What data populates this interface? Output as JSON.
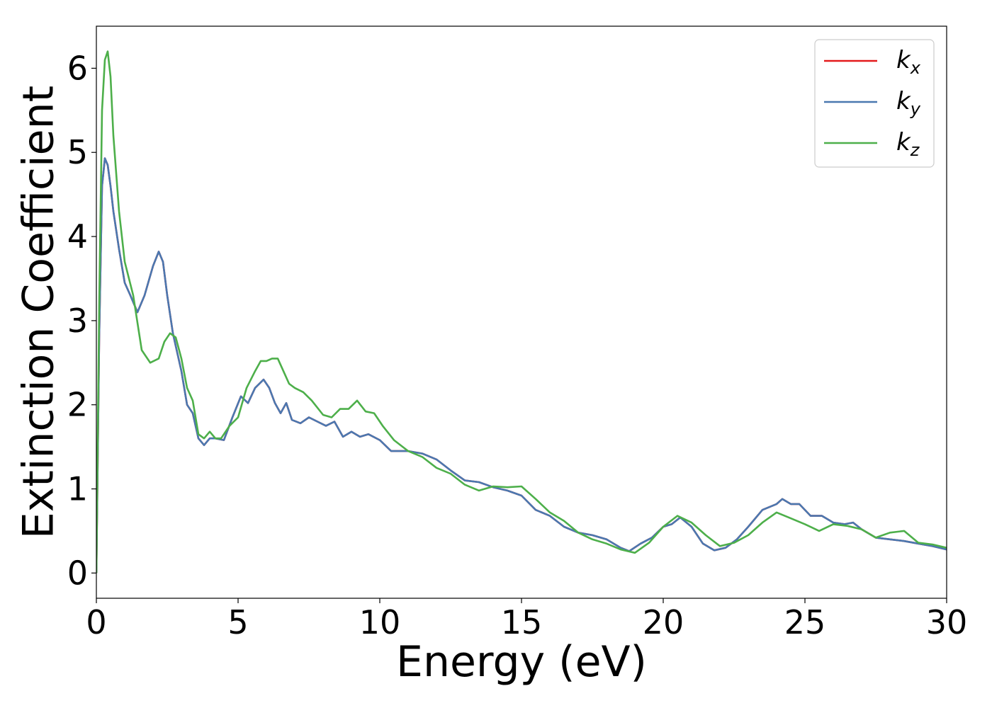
{
  "chart_data": {
    "type": "line",
    "title": "",
    "xlabel": "Energy (eV)",
    "ylabel": "Extinction Coefficient",
    "xlim": [
      0,
      30
    ],
    "ylim": [
      -0.3,
      6.5
    ],
    "xticks": [
      0,
      5,
      10,
      15,
      20,
      25,
      30
    ],
    "yticks": [
      0,
      1,
      2,
      3,
      4,
      5,
      6
    ],
    "grid": false,
    "legend_position": "top-right",
    "series": [
      {
        "name": "k",
        "subscript": "x",
        "color": "#e41a1c",
        "x": [
          0,
          0.1,
          0.2,
          0.3,
          0.4,
          0.5,
          0.6,
          0.8,
          1.0,
          1.2,
          1.45,
          1.7,
          2.0,
          2.2,
          2.35,
          2.5,
          2.7,
          3.0,
          3.2,
          3.4,
          3.6,
          3.8,
          4.0,
          4.2,
          4.5,
          4.8,
          5.1,
          5.35,
          5.6,
          5.9,
          6.1,
          6.3,
          6.5,
          6.7,
          6.9,
          7.2,
          7.5,
          7.8,
          8.1,
          8.4,
          8.7,
          9.0,
          9.3,
          9.6,
          10.0,
          10.4,
          11.0,
          11.5,
          12.0,
          12.5,
          13.0,
          13.5,
          14.0,
          14.5,
          15.0,
          15.5,
          16.0,
          16.5,
          17.0,
          17.5,
          18.0,
          18.5,
          18.8,
          19.2,
          19.6,
          20.0,
          20.3,
          20.6,
          21.0,
          21.4,
          21.8,
          22.2,
          22.6,
          23.0,
          23.5,
          24.0,
          24.2,
          24.5,
          24.8,
          25.2,
          25.6,
          26.0,
          26.4,
          26.7,
          27.0,
          27.5,
          28.0,
          28.5,
          29.0,
          29.5,
          30.0
        ],
        "values": [
          0.0,
          2.8,
          4.6,
          4.93,
          4.85,
          4.6,
          4.3,
          3.85,
          3.45,
          3.3,
          3.1,
          3.3,
          3.65,
          3.82,
          3.7,
          3.3,
          2.85,
          2.4,
          2.0,
          1.9,
          1.6,
          1.52,
          1.6,
          1.6,
          1.58,
          1.85,
          2.1,
          2.02,
          2.2,
          2.3,
          2.2,
          2.02,
          1.9,
          2.02,
          1.82,
          1.78,
          1.85,
          1.8,
          1.75,
          1.8,
          1.62,
          1.68,
          1.62,
          1.65,
          1.58,
          1.45,
          1.45,
          1.42,
          1.35,
          1.22,
          1.1,
          1.08,
          1.02,
          0.98,
          0.92,
          0.75,
          0.68,
          0.55,
          0.48,
          0.45,
          0.4,
          0.3,
          0.26,
          0.35,
          0.42,
          0.55,
          0.58,
          0.66,
          0.55,
          0.35,
          0.27,
          0.3,
          0.4,
          0.55,
          0.75,
          0.82,
          0.88,
          0.82,
          0.82,
          0.68,
          0.68,
          0.6,
          0.58,
          0.6,
          0.52,
          0.42,
          0.4,
          0.38,
          0.35,
          0.32,
          0.28
        ]
      },
      {
        "name": "k",
        "subscript": "y",
        "color": "#4a78b0",
        "x": [
          0,
          0.1,
          0.2,
          0.3,
          0.4,
          0.5,
          0.6,
          0.8,
          1.0,
          1.2,
          1.45,
          1.7,
          2.0,
          2.2,
          2.35,
          2.5,
          2.7,
          3.0,
          3.2,
          3.4,
          3.6,
          3.8,
          4.0,
          4.2,
          4.5,
          4.8,
          5.1,
          5.35,
          5.6,
          5.9,
          6.1,
          6.3,
          6.5,
          6.7,
          6.9,
          7.2,
          7.5,
          7.8,
          8.1,
          8.4,
          8.7,
          9.0,
          9.3,
          9.6,
          10.0,
          10.4,
          11.0,
          11.5,
          12.0,
          12.5,
          13.0,
          13.5,
          14.0,
          14.5,
          15.0,
          15.5,
          16.0,
          16.5,
          17.0,
          17.5,
          18.0,
          18.5,
          18.8,
          19.2,
          19.6,
          20.0,
          20.3,
          20.6,
          21.0,
          21.4,
          21.8,
          22.2,
          22.6,
          23.0,
          23.5,
          24.0,
          24.2,
          24.5,
          24.8,
          25.2,
          25.6,
          26.0,
          26.4,
          26.7,
          27.0,
          27.5,
          28.0,
          28.5,
          29.0,
          29.5,
          30.0
        ],
        "values": [
          0.0,
          2.8,
          4.6,
          4.93,
          4.85,
          4.6,
          4.3,
          3.85,
          3.45,
          3.3,
          3.1,
          3.3,
          3.65,
          3.82,
          3.7,
          3.3,
          2.85,
          2.4,
          2.0,
          1.9,
          1.6,
          1.52,
          1.6,
          1.6,
          1.58,
          1.85,
          2.1,
          2.02,
          2.2,
          2.3,
          2.2,
          2.02,
          1.9,
          2.02,
          1.82,
          1.78,
          1.85,
          1.8,
          1.75,
          1.8,
          1.62,
          1.68,
          1.62,
          1.65,
          1.58,
          1.45,
          1.45,
          1.42,
          1.35,
          1.22,
          1.1,
          1.08,
          1.02,
          0.98,
          0.92,
          0.75,
          0.68,
          0.55,
          0.48,
          0.45,
          0.4,
          0.3,
          0.26,
          0.35,
          0.42,
          0.55,
          0.58,
          0.66,
          0.55,
          0.35,
          0.27,
          0.3,
          0.4,
          0.55,
          0.75,
          0.82,
          0.88,
          0.82,
          0.82,
          0.68,
          0.68,
          0.6,
          0.58,
          0.6,
          0.52,
          0.42,
          0.4,
          0.38,
          0.35,
          0.32,
          0.28
        ]
      },
      {
        "name": "k",
        "subscript": "z",
        "color": "#4daf4a",
        "x": [
          0,
          0.1,
          0.2,
          0.3,
          0.4,
          0.5,
          0.6,
          0.8,
          1.0,
          1.3,
          1.6,
          1.9,
          2.2,
          2.4,
          2.6,
          2.8,
          3.0,
          3.2,
          3.4,
          3.6,
          3.8,
          4.0,
          4.2,
          4.4,
          4.7,
          5.0,
          5.3,
          5.6,
          5.8,
          6.0,
          6.2,
          6.4,
          6.6,
          6.8,
          7.0,
          7.3,
          7.6,
          8.0,
          8.3,
          8.6,
          8.9,
          9.2,
          9.5,
          9.8,
          10.1,
          10.5,
          11.0,
          11.5,
          12.0,
          12.5,
          13.0,
          13.5,
          14.0,
          14.5,
          15.0,
          15.5,
          16.0,
          16.5,
          17.0,
          17.5,
          18.0,
          18.5,
          19.0,
          19.5,
          20.0,
          20.5,
          21.0,
          21.5,
          22.0,
          22.5,
          23.0,
          23.5,
          24.0,
          24.5,
          25.0,
          25.5,
          26.0,
          26.5,
          27.0,
          27.5,
          28.0,
          28.5,
          29.0,
          29.5,
          30.0
        ],
        "values": [
          0.0,
          3.2,
          5.5,
          6.1,
          6.2,
          5.9,
          5.2,
          4.3,
          3.7,
          3.3,
          2.65,
          2.5,
          2.55,
          2.75,
          2.85,
          2.8,
          2.55,
          2.2,
          2.05,
          1.65,
          1.6,
          1.68,
          1.6,
          1.6,
          1.75,
          1.85,
          2.2,
          2.4,
          2.52,
          2.52,
          2.55,
          2.55,
          2.4,
          2.25,
          2.2,
          2.15,
          2.05,
          1.88,
          1.85,
          1.95,
          1.95,
          2.05,
          1.92,
          1.9,
          1.75,
          1.58,
          1.45,
          1.38,
          1.25,
          1.18,
          1.05,
          0.98,
          1.03,
          1.02,
          1.03,
          0.88,
          0.72,
          0.62,
          0.48,
          0.4,
          0.35,
          0.28,
          0.24,
          0.36,
          0.55,
          0.68,
          0.6,
          0.45,
          0.32,
          0.36,
          0.45,
          0.6,
          0.72,
          0.65,
          0.58,
          0.5,
          0.58,
          0.56,
          0.52,
          0.42,
          0.48,
          0.5,
          0.36,
          0.34,
          0.3
        ]
      }
    ]
  }
}
